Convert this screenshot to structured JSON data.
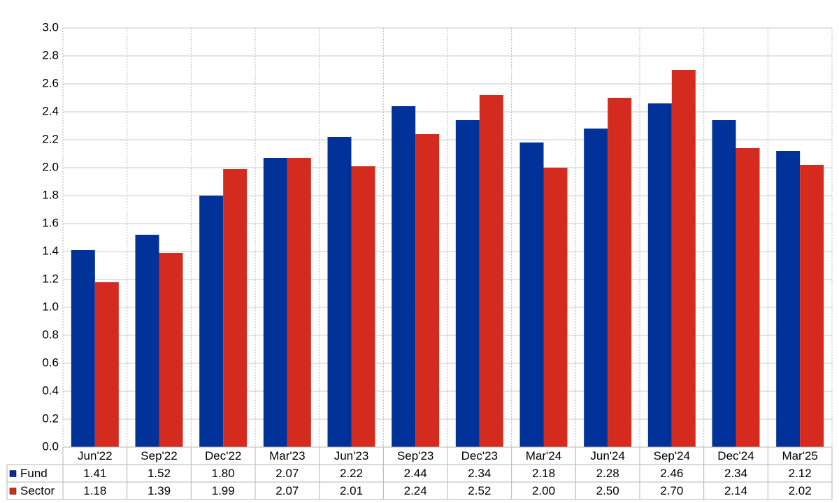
{
  "chart_data": {
    "type": "bar",
    "categories": [
      "Jun'22",
      "Sep'22",
      "Dec'22",
      "Mar'23",
      "Jun'23",
      "Sep'23",
      "Dec'23",
      "Mar'24",
      "Jun'24",
      "Sep'24",
      "Dec'24",
      "Mar'25"
    ],
    "series": [
      {
        "name": "Fund",
        "color": "#003299",
        "values": [
          1.41,
          1.52,
          1.8,
          2.07,
          2.22,
          2.44,
          2.34,
          2.18,
          2.28,
          2.46,
          2.34,
          2.12
        ],
        "value_labels": [
          "1.41",
          "1.52",
          "1.80",
          "2.07",
          "2.22",
          "2.44",
          "2.34",
          "2.18",
          "2.28",
          "2.46",
          "2.34",
          "2.12"
        ]
      },
      {
        "name": "Sector",
        "color": "#d52b1e",
        "values": [
          1.18,
          1.39,
          1.99,
          2.07,
          2.01,
          2.24,
          2.52,
          2.0,
          2.5,
          2.7,
          2.14,
          2.02
        ],
        "value_labels": [
          "1.18",
          "1.39",
          "1.99",
          "2.07",
          "2.01",
          "2.24",
          "2.52",
          "2.00",
          "2.50",
          "2.70",
          "2.14",
          "2.02"
        ]
      }
    ],
    "ylim": [
      0,
      3
    ],
    "yticks": [
      {
        "value": 0,
        "label": "0.0"
      },
      0.2,
      0.4,
      0.6,
      0.8,
      {
        "value": 1,
        "label": "1.0"
      },
      1.2,
      1.4,
      1.6,
      1.8,
      {
        "value": 2,
        "label": "2.0"
      },
      2.2,
      2.4,
      2.6,
      2.8,
      {
        "value": 3,
        "label": "3.0"
      }
    ],
    "grid": true
  }
}
